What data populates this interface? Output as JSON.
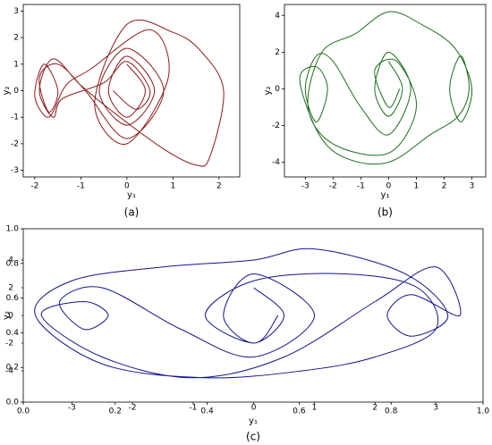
{
  "chart_data": [
    {
      "type": "line",
      "caption": "(a)",
      "xlabel": "y₁",
      "ylabel": "y₂",
      "color": "#8b1a1a",
      "xlim": [
        -2.25,
        2.45
      ],
      "xticks": [
        -2,
        -1,
        0,
        1,
        2
      ],
      "ylim": [
        -3.25,
        3.25
      ],
      "yticks": [
        -3,
        -2,
        -1,
        0,
        1,
        2,
        3
      ],
      "x": [
        0,
        0.4,
        0,
        -0.4,
        0,
        0.6,
        0,
        -0.6,
        0,
        0.8,
        0,
        -0.9,
        -1.5,
        -1.9,
        -1.7,
        -1.5,
        -1.8,
        -2.0,
        -1.7,
        -1.4,
        -1.2,
        -0.8,
        0.5,
        0.9,
        0,
        -0.7,
        0,
        1.0,
        1.6,
        2.1,
        1.8,
        1.5,
        0.8,
        -0.3,
        -1.0,
        -1.6,
        -1.9,
        -1.6,
        -1.4,
        -0.5,
        0,
        0.5,
        0.2,
        -0.3
      ],
      "values": [
        1.0,
        0,
        -1.0,
        0,
        1.3,
        0,
        -1.3,
        0,
        1.6,
        0,
        -1.8,
        0,
        1.0,
        0.5,
        -0.8,
        0,
        1.0,
        -0.2,
        -1.0,
        0,
        0.4,
        0.8,
        2.3,
        0.5,
        -2.0,
        -0.5,
        2.5,
        2.2,
        1.5,
        0.0,
        -2.5,
        -2.8,
        -2.2,
        -0.8,
        0.2,
        1.2,
        0,
        -1.0,
        -0.3,
        0.3,
        1.1,
        0,
        -0.7,
        0
      ]
    },
    {
      "type": "line",
      "caption": "(b)",
      "xlabel": "y₁",
      "ylabel": "y₂",
      "color": "#1e6e1e",
      "xlim": [
        -3.75,
        3.5
      ],
      "xticks": [
        -3,
        -2,
        -1,
        0,
        1,
        2,
        3
      ],
      "ylim": [
        -4.8,
        4.6
      ],
      "yticks": [
        -4,
        -2,
        0,
        2,
        4
      ],
      "x": [
        0,
        0.5,
        0,
        -0.5,
        0,
        0.8,
        0,
        -1.0,
        -2.0,
        -2.6,
        -3.0,
        -2.6,
        -2.2,
        -2.6,
        -3.2,
        -2.5,
        -1.5,
        0,
        1.5,
        2.5,
        2.9,
        2.6,
        2.2,
        2.6,
        3.0,
        2.4,
        1.2,
        0,
        -1.2,
        -2.4,
        -2.9,
        -2.0,
        0,
        1.0,
        0.3,
        -0.5,
        0,
        0.4
      ],
      "values": [
        1.5,
        0,
        -1.5,
        0,
        2.0,
        0,
        -2.5,
        -1.0,
        1.5,
        1.8,
        0,
        -1.8,
        0,
        1.2,
        0.5,
        -2.5,
        -3.8,
        -4.0,
        -2.5,
        -1.5,
        0,
        1.8,
        0,
        -1.8,
        0,
        2.2,
        3.5,
        4.2,
        3.0,
        2.0,
        -1.0,
        -3.0,
        -3.5,
        -1.0,
        1.5,
        1.0,
        -1.0,
        0
      ]
    },
    {
      "type": "line",
      "caption": "(c)",
      "xlabel": "y₁",
      "ylabel": "y₂",
      "color": "#14148c",
      "xlim": [
        0,
        1
      ],
      "xticks": [
        {
          "value": 0,
          "label": "0.0"
        },
        {
          "value": 0.2,
          "label": "0.2"
        },
        {
          "value": 0.4,
          "label": "0.4"
        },
        {
          "value": 0.6,
          "label": "0.6"
        },
        {
          "value": 0.8,
          "label": "0.8"
        },
        {
          "value": 1,
          "label": "1.0"
        }
      ],
      "ylim": [
        0,
        1
      ],
      "yticks": [
        {
          "value": 0,
          "label": "0.0"
        },
        {
          "value": 0.2,
          "label": "0.2"
        },
        {
          "value": 0.4,
          "label": "0.4"
        },
        {
          "value": 0.6,
          "label": "0.6"
        },
        {
          "value": 0.8,
          "label": "0.8"
        },
        {
          "value": 1,
          "label": "1.0"
        }
      ],
      "x2lim": [
        -3.8,
        3.78
      ],
      "x2ticks": [
        -3,
        -2,
        -1,
        0,
        1,
        2,
        3
      ],
      "y2lim": [
        -6.26,
        6.26
      ],
      "y2ticks": [
        4,
        2,
        0,
        -2,
        -4
      ],
      "axis": "y2",
      "x": [
        0,
        0.5,
        0,
        -0.5,
        0,
        1.0,
        0,
        -1.2,
        -2.5,
        -3.2,
        -2.8,
        -2.4,
        -2.8,
        -3.5,
        -2.5,
        -1.0,
        0.5,
        2.0,
        3.0,
        3.4,
        2.6,
        2.2,
        2.6,
        3.2,
        2.5,
        1.0,
        0,
        -1.5,
        -3.0,
        -3.6,
        -2.5,
        -0.8,
        0.8,
        2.0,
        3.0,
        2.7,
        1.5,
        0,
        -0.8,
        0,
        0.4
      ],
      "values": [
        2,
        0,
        -2,
        0,
        3,
        0,
        -3,
        -1,
        2,
        1,
        -1,
        0,
        1,
        0,
        -3,
        -4.5,
        -3,
        1,
        3.5,
        0,
        1.5,
        0,
        -1.5,
        0,
        3,
        4.8,
        4.0,
        3.5,
        2.5,
        0,
        -3.5,
        -4.5,
        -4.0,
        -3.0,
        -1.0,
        2.0,
        3.0,
        2.5,
        0,
        -2,
        0
      ]
    }
  ]
}
